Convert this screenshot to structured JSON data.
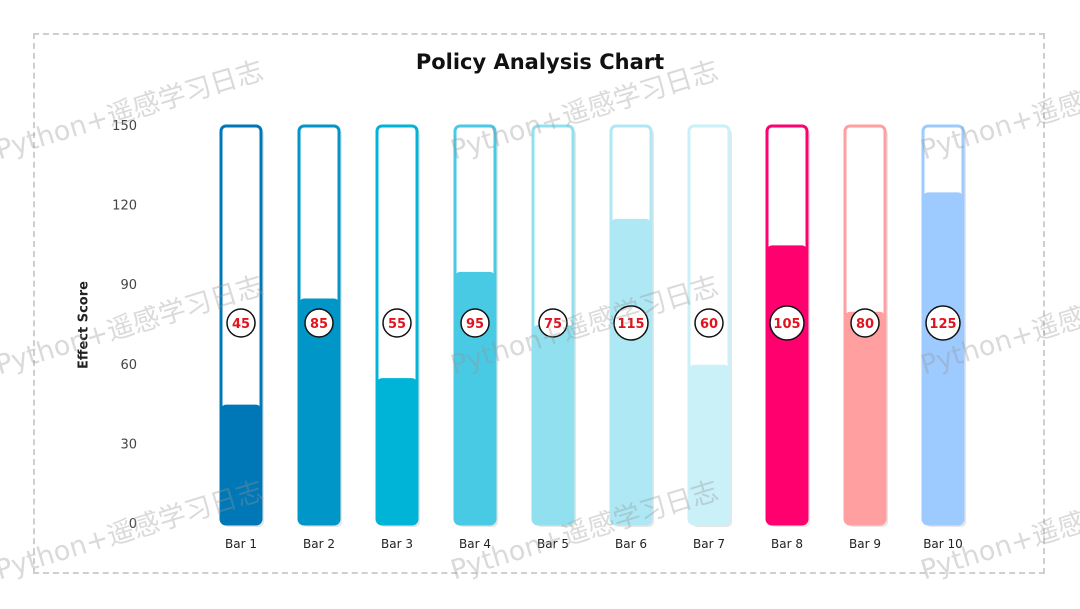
{
  "watermark_text": "Python+遥感学习日志",
  "chart_data": {
    "type": "bar",
    "title": "Policy Analysis Chart",
    "xlabel": "",
    "ylabel": "Effect Score",
    "ylim": [
      0,
      150
    ],
    "yticks": [
      0,
      30,
      60,
      90,
      120,
      150
    ],
    "grid": false,
    "categories": [
      "Bar 1",
      "Bar 2",
      "Bar 3",
      "Bar 4",
      "Bar 5",
      "Bar 6",
      "Bar 7",
      "Bar 8",
      "Bar 9",
      "Bar 10"
    ],
    "values": [
      45,
      85,
      55,
      95,
      75,
      115,
      60,
      105,
      80,
      125
    ],
    "colors": [
      "#0077b6",
      "#0096c7",
      "#00b4d8",
      "#48cae4",
      "#90e0ef",
      "#ade8f4",
      "#caf0f8",
      "#ff006e",
      "#ff9f9f",
      "#9ecbff"
    ],
    "max_values": [
      150,
      150,
      150,
      150,
      150,
      150,
      150,
      150,
      150,
      150
    ]
  }
}
